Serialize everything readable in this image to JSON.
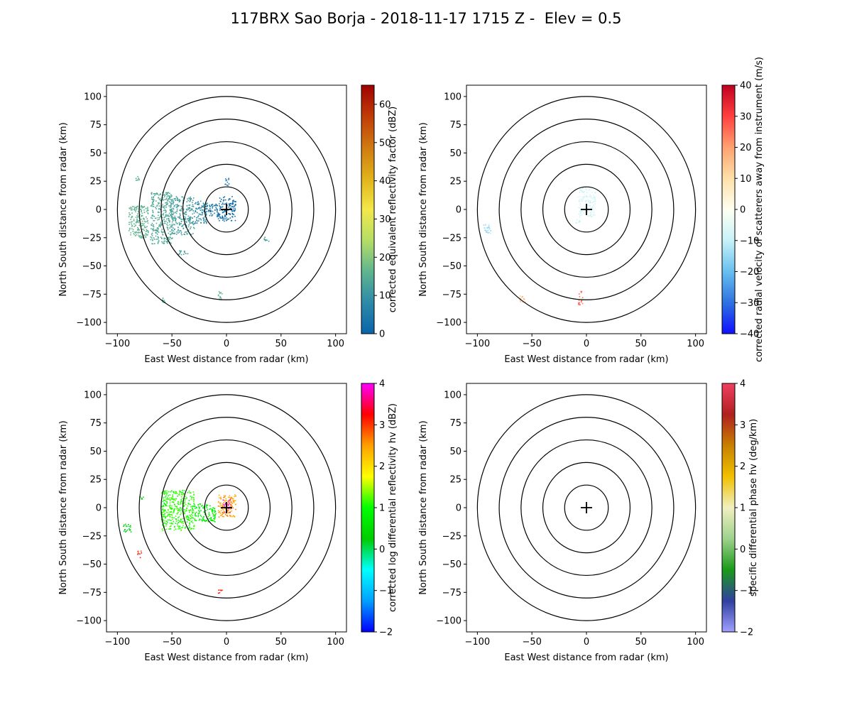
{
  "figure": {
    "title": "117BRX Sao Borja - 2018-11-17 1715 Z -  Elev = 0.5"
  },
  "chart_data": [
    {
      "type": "heatmap",
      "panel": "top-left",
      "xlabel": "East West distance from radar (km)",
      "ylabel": "North South distance from radar (km)",
      "xlim": [
        -110,
        110
      ],
      "ylim": [
        -110,
        110
      ],
      "xticks": [
        -100,
        -50,
        0,
        50,
        100
      ],
      "yticks": [
        -100,
        -75,
        -50,
        -25,
        0,
        25,
        50,
        75,
        100
      ],
      "range_rings_km": [
        20,
        40,
        60,
        80,
        100
      ],
      "colorbar": {
        "label": "corrected equivalent reflectivity factor (dBZ)",
        "range": [
          0,
          65
        ],
        "ticks": [
          0,
          10,
          20,
          30,
          40,
          50,
          60
        ],
        "colormap": [
          "#0a64aa",
          "#2d8aa8",
          "#5fb58f",
          "#b4de66",
          "#f3e84a",
          "#e1b21b",
          "#d07a10",
          "#c03c08",
          "#a00000"
        ]
      },
      "echoes": [
        {
          "x": [
            -8,
            8
          ],
          "y": [
            -10,
            12
          ],
          "value": 2
        },
        {
          "x": [
            -20,
            -6
          ],
          "y": [
            -6,
            6
          ],
          "value": 4
        },
        {
          "x": [
            -30,
            -18
          ],
          "y": [
            -12,
            8
          ],
          "value": 8
        },
        {
          "x": [
            -52,
            -30
          ],
          "y": [
            -22,
            12
          ],
          "value": 12
        },
        {
          "x": [
            -70,
            -50
          ],
          "y": [
            -30,
            16
          ],
          "value": 14
        },
        {
          "x": [
            -90,
            -72
          ],
          "y": [
            -25,
            4
          ],
          "value": 16
        },
        {
          "x": [
            -85,
            -80
          ],
          "y": [
            26,
            30
          ],
          "value": 14
        },
        {
          "x": [
            -45,
            -35
          ],
          "y": [
            -40,
            -36
          ],
          "value": 12
        },
        {
          "x": [
            -60,
            -55
          ],
          "y": [
            -82,
            -77
          ],
          "value": 14
        },
        {
          "x": [
            -8,
            -4
          ],
          "y": [
            -82,
            -72
          ],
          "value": 16
        },
        {
          "x": [
            -2,
            2
          ],
          "y": [
            20,
            28
          ],
          "value": 4
        },
        {
          "x": [
            34,
            40
          ],
          "y": [
            -28,
            -24
          ],
          "value": 12
        }
      ]
    },
    {
      "type": "heatmap",
      "panel": "top-right",
      "xlabel": "East West distance from radar (km)",
      "ylabel": "North South distance from radar (km)",
      "xlim": [
        -110,
        110
      ],
      "ylim": [
        -110,
        110
      ],
      "xticks": [
        -100,
        -50,
        0,
        50,
        100
      ],
      "yticks": [
        -100,
        -75,
        -50,
        -25,
        0,
        25,
        50,
        75,
        100
      ],
      "range_rings_km": [
        20,
        40,
        60,
        80,
        100
      ],
      "colorbar": {
        "label": "corrected radial velocity of scatterers away from instrument (m/s)",
        "range": [
          -40,
          40
        ],
        "ticks": [
          -40,
          -30,
          -20,
          -10,
          0,
          10,
          20,
          30,
          40
        ],
        "colormap": [
          "#1010ff",
          "#2e72e0",
          "#67bff0",
          "#c7f2f8",
          "#fffff2",
          "#fde0a8",
          "#ffa270",
          "#ff4040",
          "#c00020"
        ]
      },
      "echoes": [
        {
          "x": [
            -8,
            8
          ],
          "y": [
            -6,
            20
          ],
          "value": -8
        },
        {
          "x": [
            -10,
            -6
          ],
          "y": [
            -12,
            -6
          ],
          "value": -10
        },
        {
          "x": [
            -95,
            -88
          ],
          "y": [
            -22,
            -12
          ],
          "value": -14
        },
        {
          "x": [
            -62,
            -56
          ],
          "y": [
            -82,
            -76
          ],
          "value": 16
        },
        {
          "x": [
            -8,
            -4
          ],
          "y": [
            -84,
            -72
          ],
          "value": 26
        }
      ]
    },
    {
      "type": "heatmap",
      "panel": "bottom-left",
      "xlabel": "East West distance from radar (km)",
      "ylabel": "North South distance from radar (km)",
      "xlim": [
        -110,
        110
      ],
      "ylim": [
        -110,
        110
      ],
      "xticks": [
        -100,
        -50,
        0,
        50,
        100
      ],
      "yticks": [
        -100,
        -75,
        -50,
        -25,
        0,
        25,
        50,
        75,
        100
      ],
      "range_rings_km": [
        20,
        40,
        60,
        80,
        100
      ],
      "colorbar": {
        "label": "corrected log differential reflectivity hv (dBZ)",
        "range": [
          -2,
          4
        ],
        "ticks": [
          -2,
          -1,
          0,
          1,
          2,
          3,
          4
        ],
        "colormap": [
          "#0000ff",
          "#00a0ff",
          "#00ffff",
          "#00cc00",
          "#00ff00",
          "#ffff00",
          "#ffa000",
          "#ff0000",
          "#ff00ff"
        ]
      },
      "echoes": [
        {
          "x": [
            -4,
            4
          ],
          "y": [
            -4,
            8
          ],
          "value": 3.9
        },
        {
          "x": [
            -8,
            8
          ],
          "y": [
            -8,
            12
          ],
          "value": 2.5
        },
        {
          "x": [
            -30,
            -10
          ],
          "y": [
            -12,
            4
          ],
          "value": 0.8
        },
        {
          "x": [
            -60,
            -30
          ],
          "y": [
            -20,
            16
          ],
          "value": 1.1
        },
        {
          "x": [
            -95,
            -88
          ],
          "y": [
            -22,
            -14
          ],
          "value": 0.2
        },
        {
          "x": [
            -82,
            -78
          ],
          "y": [
            -44,
            -38
          ],
          "value": 3.1
        },
        {
          "x": [
            -80,
            -76
          ],
          "y": [
            8,
            12
          ],
          "value": 0.5
        },
        {
          "x": [
            -8,
            -4
          ],
          "y": [
            -76,
            -72
          ],
          "value": 3.2
        }
      ]
    },
    {
      "type": "heatmap",
      "panel": "bottom-right",
      "xlabel": "East West distance from radar (km)",
      "ylabel": "North South distance from radar (km)",
      "xlim": [
        -110,
        110
      ],
      "ylim": [
        -110,
        110
      ],
      "xticks": [
        -100,
        -50,
        0,
        50,
        100
      ],
      "yticks": [
        -100,
        -75,
        -50,
        -25,
        0,
        25,
        50,
        75,
        100
      ],
      "range_rings_km": [
        20,
        40,
        60,
        80,
        100
      ],
      "colorbar": {
        "label": "specific differential phase hv (deg/km)",
        "range": [
          -2,
          4
        ],
        "ticks": [
          -2,
          -1,
          0,
          1,
          2,
          3,
          4
        ],
        "colormap": [
          "#a0a0ff",
          "#3040a0",
          "#1a9a1a",
          "#9ed28c",
          "#f0f0c0",
          "#f0c000",
          "#c88000",
          "#b02020",
          "#f04060"
        ]
      },
      "echoes": []
    }
  ]
}
